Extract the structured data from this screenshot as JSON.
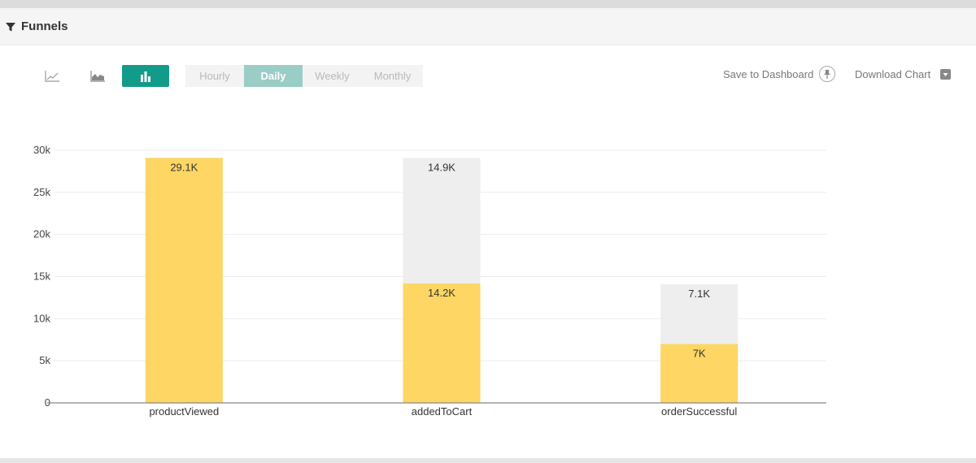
{
  "header": {
    "title": "Funnels",
    "icon": "funnel-icon"
  },
  "toolbar": {
    "chart_types": [
      {
        "name": "line-chart-button",
        "icon": "line-chart-icon",
        "active": false
      },
      {
        "name": "area-chart-button",
        "icon": "area-chart-icon",
        "active": false
      },
      {
        "name": "bar-chart-button",
        "icon": "bar-chart-icon",
        "active": true
      }
    ],
    "intervals": [
      "Hourly",
      "Daily",
      "Weekly",
      "Monthly"
    ],
    "selected_interval": "Daily",
    "save_label": "Save to Dashboard",
    "download_label": "Download Chart"
  },
  "colors": {
    "converted": "#fdd663",
    "dropped": "#eeeeee",
    "accent": "#139b8a",
    "accent_light": "#99cdc5"
  },
  "chart_data": {
    "type": "bar",
    "stacked": true,
    "categories": [
      "productViewed",
      "addedToCart",
      "orderSuccessful"
    ],
    "series": [
      {
        "values": [
          29100,
          14200,
          7000
        ],
        "labels": [
          "29.1K",
          "14.2K",
          "7K"
        ],
        "color": "#fdd663"
      },
      {
        "values": [
          0,
          14900,
          7100
        ],
        "labels": [
          "",
          "14.9K",
          "7.1K"
        ],
        "color": "#eeeeee"
      }
    ],
    "ylim": [
      0,
      30000
    ],
    "yticks": [
      0,
      5000,
      10000,
      15000,
      20000,
      25000,
      30000
    ],
    "ytick_labels": [
      "0",
      "5k",
      "10k",
      "15k",
      "20k",
      "25k",
      "30k"
    ],
    "grid": true
  }
}
